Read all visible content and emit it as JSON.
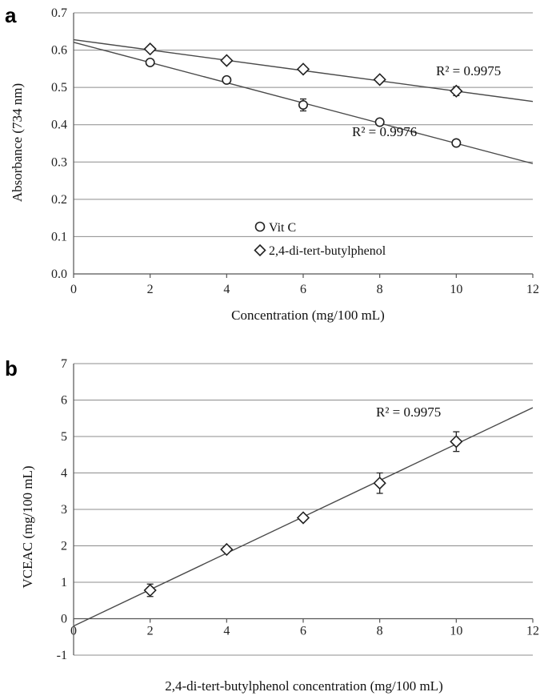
{
  "chart_data": [
    {
      "panel": "a",
      "type": "scatter",
      "xlabel": "Concentration (mg/100 mL)",
      "ylabel": "Absorbance (734 nm)",
      "xlim": [
        0,
        12
      ],
      "ylim": [
        0.0,
        0.7
      ],
      "x_ticks": [
        "0",
        "2",
        "4",
        "6",
        "8",
        "10",
        "12"
      ],
      "y_ticks": [
        "0.0",
        "0.1",
        "0.2",
        "0.3",
        "0.4",
        "0.5",
        "0.6",
        "0.7"
      ],
      "grid": "horizontal",
      "legend_position": "bottom-left",
      "series": [
        {
          "name": "Vit C",
          "marker": "circle",
          "x": [
            2,
            4,
            6,
            8,
            10
          ],
          "values": [
            0.567,
            0.52,
            0.453,
            0.407,
            0.351
          ],
          "error": [
            0.006,
            0.006,
            0.016,
            0.006,
            0.005
          ],
          "trend": {
            "intercept": 0.621,
            "slope": -0.0271
          },
          "r2_label": "R² = 0.9976"
        },
        {
          "name": "2,4-di-tert-butylphenol",
          "marker": "diamond",
          "x": [
            2,
            4,
            6,
            8,
            10
          ],
          "values": [
            0.603,
            0.572,
            0.549,
            0.521,
            0.49
          ],
          "error": [
            0.005,
            0.005,
            0.006,
            0.008,
            0.012
          ],
          "trend": {
            "intercept": 0.628,
            "slope": -0.0138
          },
          "r2_label": "R² = 0.9975"
        }
      ]
    },
    {
      "panel": "b",
      "type": "scatter",
      "xlabel": "2,4-di-tert-butylphenol concentration (mg/100 mL)",
      "ylabel": "VCEAC (mg/100 mL)",
      "xlim": [
        0,
        12
      ],
      "ylim": [
        -1,
        7
      ],
      "x_ticks": [
        "0",
        "2",
        "4",
        "6",
        "8",
        "10",
        "12"
      ],
      "y_ticks": [
        "-1",
        "0",
        "1",
        "2",
        "3",
        "4",
        "5",
        "6",
        "7"
      ],
      "grid": "horizontal",
      "series": [
        {
          "marker": "diamond",
          "x": [
            2,
            4,
            6,
            8,
            10
          ],
          "values": [
            0.78,
            1.9,
            2.77,
            3.72,
            4.86
          ],
          "error": [
            0.17,
            0.08,
            0.08,
            0.28,
            0.27
          ],
          "trend": {
            "intercept": -0.2,
            "slope": 0.4993
          },
          "r2_label": "R² = 0.9975"
        }
      ]
    }
  ]
}
